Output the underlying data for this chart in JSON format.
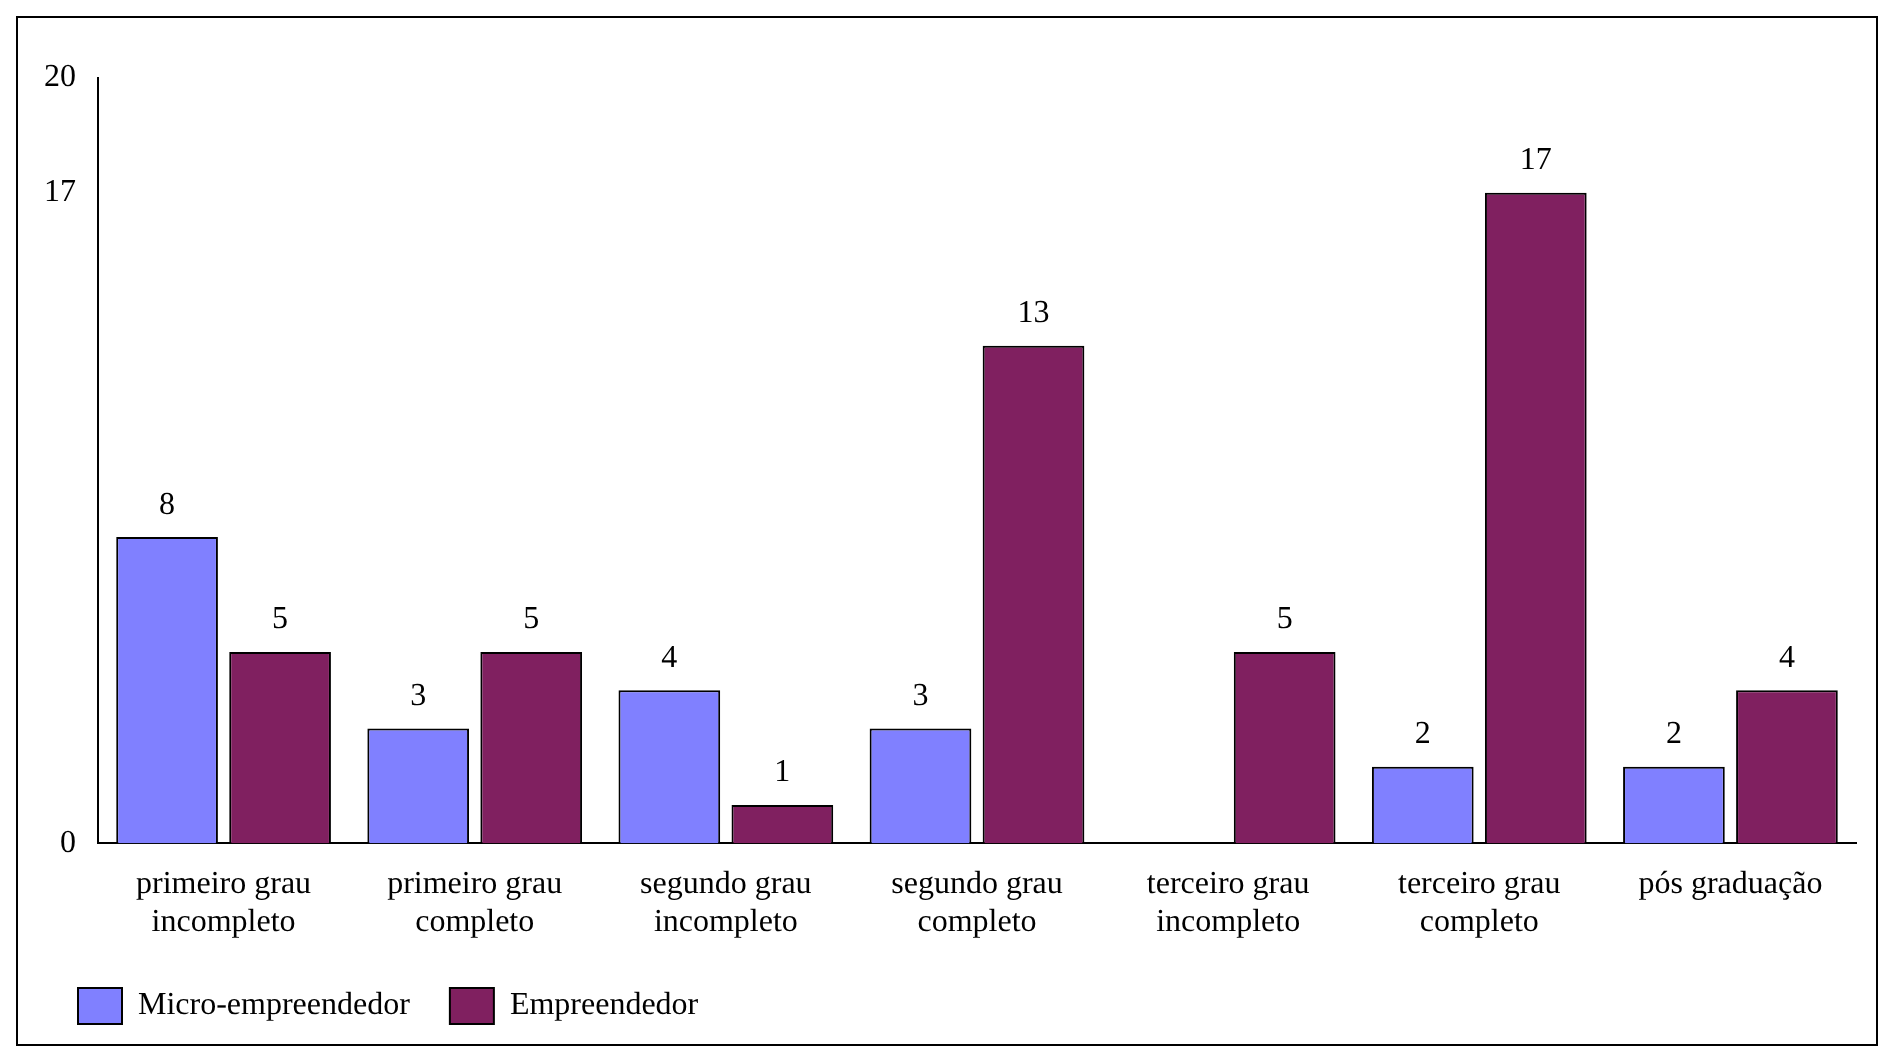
{
  "chart_data": {
    "type": "bar",
    "categories": [
      "primeiro grau incompleto",
      "primeiro grau completo",
      "segundo grau incompleto",
      "segundo grau completo",
      "terceiro grau incompleto",
      "terceiro grau completo",
      "pós graduação"
    ],
    "series": [
      {
        "name": "Micro-empreendedor",
        "color": "#8080ff",
        "values": [
          8,
          3,
          4,
          3,
          null,
          2,
          2
        ]
      },
      {
        "name": "Empreendedor",
        "color": "#802060",
        "values": [
          5,
          5,
          1,
          13,
          5,
          17,
          4
        ]
      }
    ],
    "ylim": [
      0,
      20
    ],
    "yticks": [
      0,
      17,
      20
    ],
    "grid": false,
    "legend": "bottom left",
    "data_labels": true
  }
}
